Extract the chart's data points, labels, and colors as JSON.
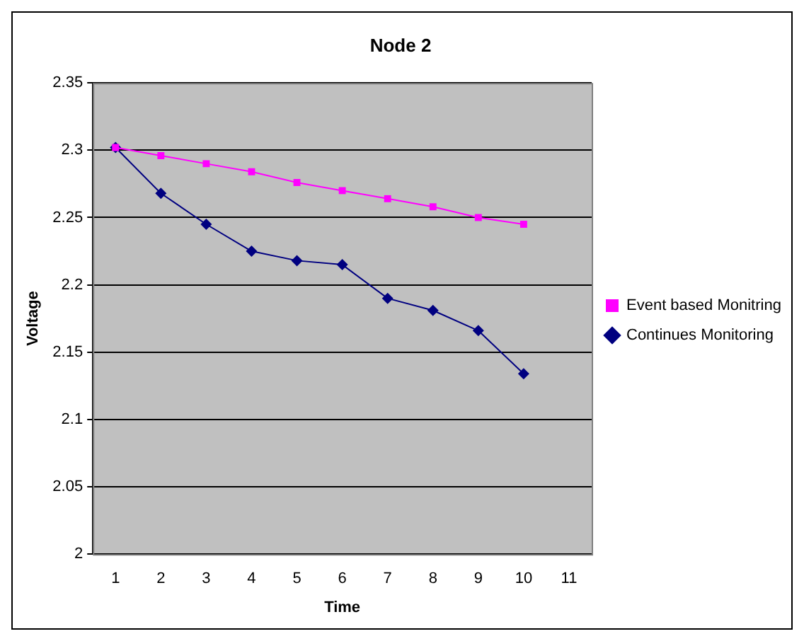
{
  "chart_data": {
    "type": "line",
    "title": "Node 2",
    "xlabel": "Time",
    "ylabel": "Voltage",
    "categories": [
      "1",
      "2",
      "3",
      "4",
      "5",
      "6",
      "7",
      "8",
      "9",
      "10",
      "11"
    ],
    "series": [
      {
        "name": "Continues Monitoring",
        "color": "#000080",
        "marker": "diamond",
        "values": [
          2.302,
          2.268,
          2.245,
          2.225,
          2.218,
          2.215,
          2.19,
          2.181,
          2.166,
          2.134,
          null
        ]
      },
      {
        "name": "Event based Monitring",
        "color": "#ff00ff",
        "marker": "square",
        "values": [
          2.302,
          2.296,
          2.29,
          2.284,
          2.276,
          2.27,
          2.264,
          2.258,
          2.25,
          2.245,
          null
        ]
      }
    ],
    "ylim": [
      2,
      2.35
    ],
    "yticks": [
      2,
      2.05,
      2.1,
      2.15,
      2.2,
      2.25,
      2.3,
      2.35
    ],
    "grid": "y",
    "legend": "right",
    "line_style": "solid"
  }
}
